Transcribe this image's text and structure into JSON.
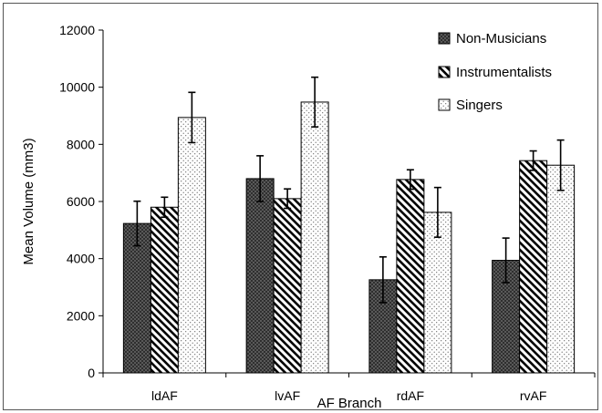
{
  "chart_data": {
    "type": "bar",
    "title": "",
    "xlabel": "AF Branch",
    "ylabel": "Mean Volume (mm3)",
    "categories": [
      "ldAF",
      "lvAF",
      "rdAF",
      "rvAF"
    ],
    "ylim": [
      0,
      12000
    ],
    "yticks": [
      0,
      2000,
      4000,
      6000,
      8000,
      10000,
      12000
    ],
    "grid": false,
    "legend_position": "top-right",
    "series": [
      {
        "name": "Non-Musicians",
        "pattern": "crosshatch",
        "color": "#555555",
        "values": [
          5230,
          6800,
          3260,
          3940
        ],
        "errors": [
          780,
          800,
          800,
          780
        ]
      },
      {
        "name": "Instrumentalists",
        "pattern": "diagonal-stripes",
        "color": "#000000",
        "values": [
          5800,
          6100,
          6770,
          7430
        ],
        "errors": [
          350,
          340,
          340,
          340
        ]
      },
      {
        "name": "Singers",
        "pattern": "dots",
        "color": "#888888",
        "values": [
          8940,
          9480,
          5620,
          7270
        ],
        "errors": [
          880,
          870,
          870,
          880
        ]
      }
    ]
  }
}
